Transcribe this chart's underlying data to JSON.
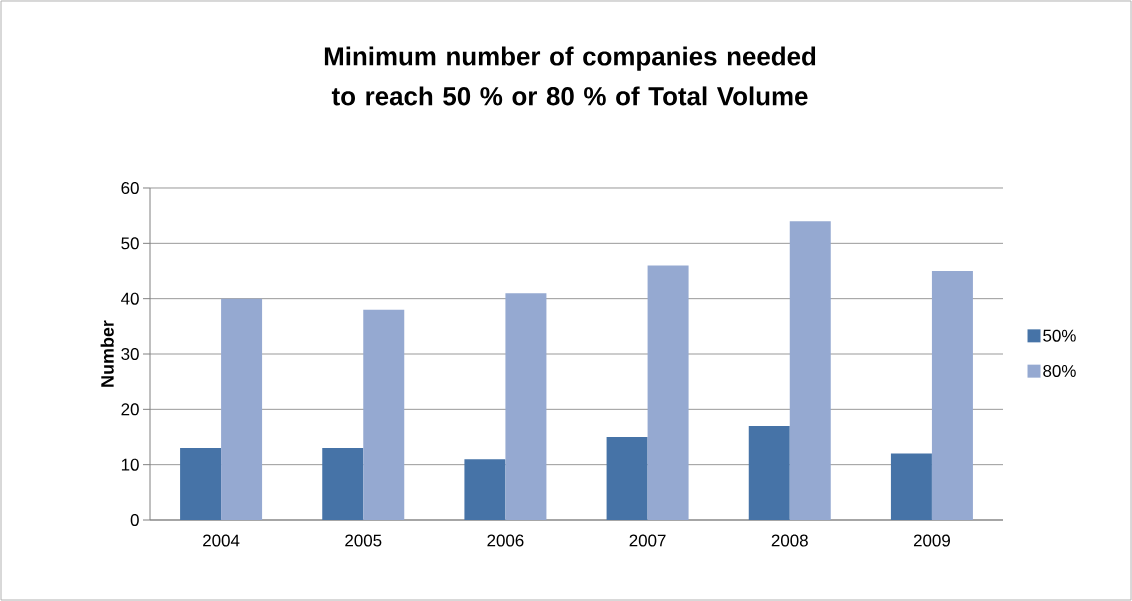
{
  "chart_data": {
    "type": "bar",
    "title": "Minimum number of companies needed to reach 50 % or 80 % of Total Volume",
    "ylabel": "Number",
    "categories": [
      "2004",
      "2005",
      "2006",
      "2007",
      "2008",
      "2009"
    ],
    "series": [
      {
        "name": "50%",
        "color": "#4673a7",
        "values": [
          13,
          13,
          11,
          15,
          17,
          12
        ]
      },
      {
        "name": "80%",
        "color": "#95a9d1",
        "values": [
          40,
          38,
          41,
          46,
          54,
          45
        ]
      }
    ],
    "ylim": [
      0,
      60
    ],
    "yticks": [
      0,
      10,
      20,
      30,
      40,
      50,
      60
    ],
    "grid": "y",
    "legend": "right"
  }
}
